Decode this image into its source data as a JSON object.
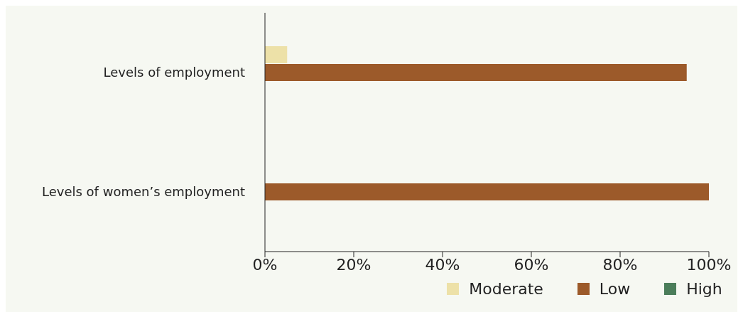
{
  "chart_data": {
    "type": "bar",
    "orientation": "horizontal",
    "categories": [
      "Levels of employment",
      "Levels of women’s employment"
    ],
    "series": [
      {
        "name": "Moderate",
        "color": "#ede1a8",
        "values": [
          5,
          0
        ]
      },
      {
        "name": "Low",
        "color": "#9c5a2a",
        "values": [
          95,
          100
        ]
      },
      {
        "name": "High",
        "color": "#4b7d5a",
        "values": [
          0,
          0
        ]
      }
    ],
    "xlim": [
      0,
      100
    ],
    "xticks": [
      {
        "value": 0,
        "label": "0%"
      },
      {
        "value": 20,
        "label": "20%"
      },
      {
        "value": 40,
        "label": "40%"
      },
      {
        "value": 60,
        "label": "60%"
      },
      {
        "value": 80,
        "label": "80%"
      },
      {
        "value": 100,
        "label": "100%"
      }
    ],
    "grid": false,
    "legend": "bottom"
  }
}
